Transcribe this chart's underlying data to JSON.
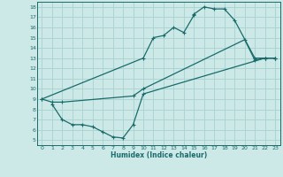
{
  "title": "",
  "xlabel": "Humidex (Indice chaleur)",
  "ylabel": "",
  "bg_color": "#cce9e8",
  "line_color": "#1a6b6b",
  "grid_color": "#aad4d2",
  "xlim": [
    -0.5,
    23.5
  ],
  "ylim": [
    4.5,
    18.5
  ],
  "xticks": [
    0,
    1,
    2,
    3,
    4,
    5,
    6,
    7,
    8,
    9,
    10,
    11,
    12,
    13,
    14,
    15,
    16,
    17,
    18,
    19,
    20,
    21,
    22,
    23
  ],
  "yticks": [
    5,
    6,
    7,
    8,
    9,
    10,
    11,
    12,
    13,
    14,
    15,
    16,
    17,
    18
  ],
  "curve1_x": [
    0,
    10,
    11,
    12,
    13,
    14,
    15,
    15,
    16,
    17,
    18,
    19,
    21,
    22,
    23
  ],
  "curve1_y": [
    9,
    13,
    15,
    15.2,
    16,
    15.5,
    17.2,
    17.3,
    18,
    17.8,
    17.8,
    16.7,
    13,
    13,
    13
  ],
  "curve2_x": [
    0,
    1,
    2,
    9,
    10,
    20,
    21,
    22,
    23
  ],
  "curve2_y": [
    9,
    8.7,
    8.7,
    9.3,
    10,
    14.8,
    12.8,
    13,
    13
  ],
  "curve3_x": [
    1,
    2,
    3,
    4,
    5,
    6,
    7,
    8,
    9,
    10,
    22,
    23
  ],
  "curve3_y": [
    8.5,
    7,
    6.5,
    6.5,
    6.3,
    5.8,
    5.3,
    5.2,
    6.5,
    9.5,
    13,
    13
  ]
}
